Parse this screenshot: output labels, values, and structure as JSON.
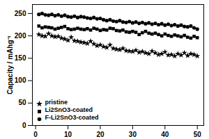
{
  "chart_data": {
    "type": "scatter",
    "y_label": "Capacity / mAhg⁻¹",
    "x": [
      1,
      2,
      3,
      4,
      5,
      6,
      7,
      8,
      9,
      10,
      11,
      12,
      13,
      14,
      15,
      16,
      17,
      18,
      19,
      20,
      21,
      22,
      23,
      24,
      25,
      26,
      27,
      28,
      29,
      30,
      31,
      32,
      33,
      34,
      35,
      36,
      37,
      38,
      39,
      40,
      41,
      42,
      43,
      44,
      45,
      46,
      47,
      48,
      49,
      50
    ],
    "series": [
      {
        "name": "pristine",
        "color": "#000000",
        "marker": "star",
        "values": [
          203,
          200,
          199,
          205,
          200,
          198,
          199,
          195,
          193,
          190,
          197,
          189,
          188,
          186,
          185,
          183,
          188,
          182,
          178,
          180,
          176,
          174,
          180,
          172,
          170,
          169,
          172,
          167,
          166,
          165,
          168,
          163,
          165,
          162,
          160,
          166,
          162,
          158,
          160,
          164,
          157,
          158,
          155,
          160,
          157,
          162,
          156,
          160,
          158,
          155
        ]
      },
      {
        "name": "Li2SnO3-coated",
        "color": "#000000",
        "marker": "square",
        "values": [
          222,
          218,
          220,
          219,
          218,
          215,
          217,
          219,
          221,
          216,
          214,
          215,
          217,
          215,
          214,
          216,
          213,
          217,
          215,
          212,
          214,
          213,
          217,
          216,
          212,
          211,
          213,
          209,
          208,
          210,
          208,
          203,
          207,
          210,
          206,
          204,
          206,
          203,
          200,
          204,
          201,
          199,
          202,
          200,
          198,
          201,
          197,
          195,
          199,
          196
        ]
      },
      {
        "name": "F-Li2SnO3-coated",
        "color": "#000000",
        "marker": "circle",
        "values": [
          248,
          250,
          247,
          246,
          248,
          245,
          247,
          244,
          246,
          243,
          242,
          244,
          241,
          243,
          242,
          240,
          239,
          241,
          238,
          239,
          236,
          234,
          236,
          233,
          232,
          234,
          231,
          230,
          232,
          229,
          231,
          228,
          230,
          227,
          229,
          226,
          228,
          225,
          227,
          224,
          226,
          223,
          225,
          222,
          224,
          221,
          220,
          222,
          218,
          215
        ]
      }
    ],
    "xlim": [
      -1,
      52
    ],
    "xticks": [
      0,
      10,
      20,
      30,
      40,
      50
    ],
    "ylim": [
      0,
      270
    ],
    "yticks": [
      0,
      50,
      100,
      150,
      200,
      250
    ],
    "legend": "lower left",
    "grid": false
  }
}
